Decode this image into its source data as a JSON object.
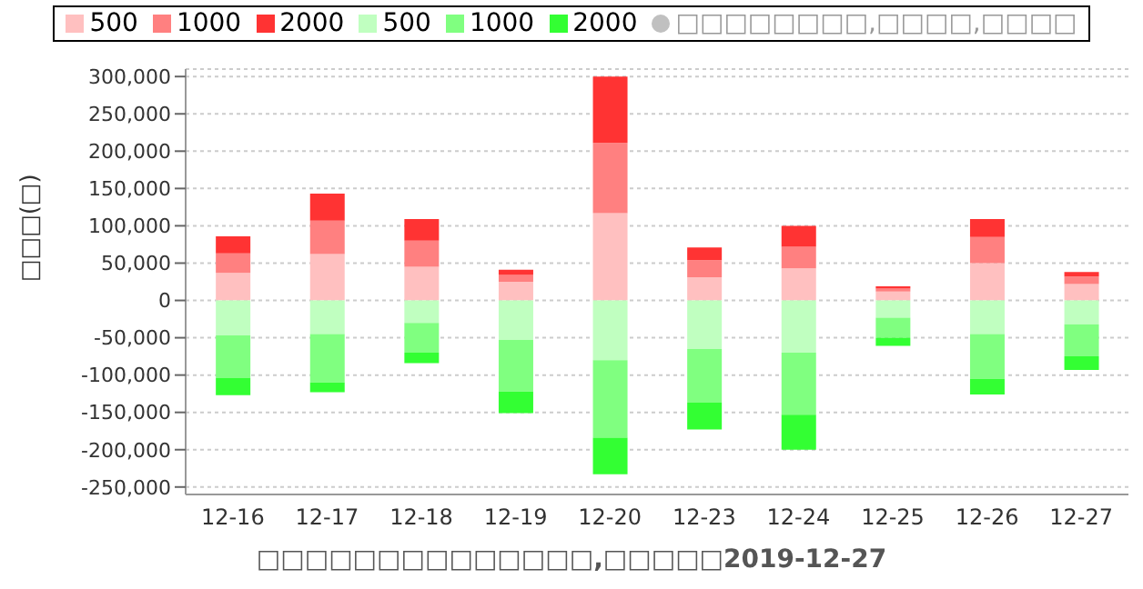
{
  "chart_data": {
    "type": "bar",
    "title": "□□□□□□□□□□□□□□,□□□□□2019-12-27",
    "ylabel": "□□□(□)",
    "stacked": true,
    "categories": [
      "12-16",
      "12-17",
      "12-18",
      "12-19",
      "12-20",
      "12-23",
      "12-24",
      "12-25",
      "12-26",
      "12-27"
    ],
    "series": [
      {
        "name": "500",
        "color": "#ffc0c0",
        "values": [
          37000,
          62000,
          45000,
          25000,
          117000,
          31000,
          43000,
          12000,
          50000,
          22000
        ]
      },
      {
        "name": "1000",
        "color": "#ff8080",
        "values": [
          26000,
          45000,
          35000,
          9000,
          94000,
          23000,
          29000,
          4000,
          35000,
          10000
        ]
      },
      {
        "name": "2000",
        "color": "#ff3333",
        "values": [
          23000,
          36000,
          29000,
          7000,
          89000,
          17000,
          28000,
          3000,
          24000,
          6000
        ]
      },
      {
        "name": "500",
        "color": "#c0ffc0",
        "values": [
          -47000,
          -45000,
          -30000,
          -53000,
          -80000,
          -65000,
          -70000,
          -23000,
          -45000,
          -32000
        ]
      },
      {
        "name": "1000",
        "color": "#80ff80",
        "values": [
          -57000,
          -65000,
          -40000,
          -69000,
          -104000,
          -72000,
          -83000,
          -27000,
          -60000,
          -43000
        ]
      },
      {
        "name": "2000",
        "color": "#33ff33",
        "values": [
          -23000,
          -13000,
          -14000,
          -29000,
          -49000,
          -36000,
          -47000,
          -11000,
          -21000,
          -18000
        ]
      },
      {
        "name": "□□□□□□□□,□□□□,□□□□",
        "type": "scatter",
        "color": "#c0c0c0",
        "values": [
          null,
          null,
          null,
          null,
          null,
          null,
          null,
          null,
          null,
          null
        ]
      }
    ],
    "ylim": [
      -260000,
      310000
    ],
    "yticks": [
      {
        "value": -250000,
        "label": "-250,000"
      },
      {
        "value": -200000,
        "label": "-200,000"
      },
      {
        "value": -150000,
        "label": "-150,000"
      },
      {
        "value": -100000,
        "label": "-100,000"
      },
      {
        "value": -50000,
        "label": "-50,000"
      },
      0,
      {
        "value": 50000,
        "label": "50,000"
      },
      {
        "value": 100000,
        "label": "100,000"
      },
      {
        "value": 150000,
        "label": "150,000"
      },
      {
        "value": 200000,
        "label": "200,000"
      },
      {
        "value": 250000,
        "label": "250,000"
      },
      {
        "value": 300000,
        "label": "300,000"
      }
    ],
    "grid": "y",
    "legend": "top"
  }
}
